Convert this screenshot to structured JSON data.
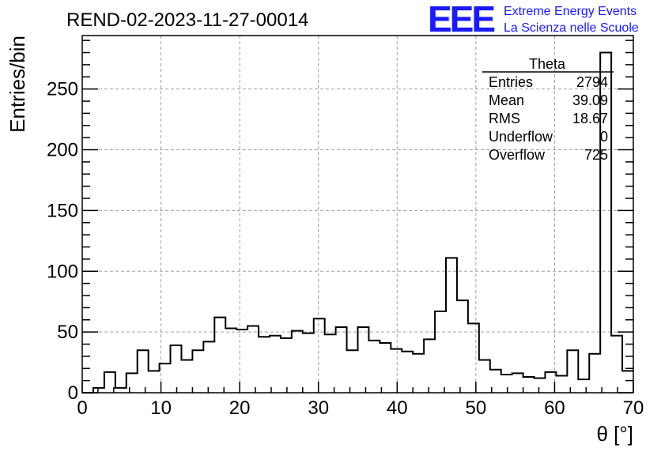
{
  "title": "REND-02-2023-11-27-00014",
  "logo": {
    "mark": "EEE",
    "line1": "Extreme Energy Events",
    "line2": "La Scienza nelle Scuole",
    "color": "#1a1aff"
  },
  "stats_box": {
    "name": "Theta",
    "rows": [
      {
        "label": "Entries",
        "value": "2794"
      },
      {
        "label": "Mean",
        "value": "39.09"
      },
      {
        "label": "RMS",
        "value": "18.67"
      },
      {
        "label": "Underflow",
        "value": "0"
      },
      {
        "label": "Overflow",
        "value": "725"
      }
    ]
  },
  "chart_data": {
    "type": "bar",
    "subtype": "step-histogram",
    "title": "REND-02-2023-11-27-00014",
    "xlabel": "θ [°]",
    "ylabel": "Entries/bin",
    "xlim": [
      0,
      70
    ],
    "ylim": [
      0,
      294
    ],
    "grid": true,
    "bin_width": 1.4,
    "xticks": [
      0,
      10,
      20,
      30,
      40,
      50,
      60,
      70
    ],
    "yticks": [
      0,
      50,
      100,
      150,
      200,
      250
    ],
    "values": [
      0,
      4,
      17,
      4,
      16,
      35,
      18,
      24,
      39,
      27,
      35,
      42,
      62,
      53,
      52,
      55,
      46,
      47,
      45,
      51,
      49,
      61,
      48,
      54,
      35,
      54,
      43,
      41,
      36,
      34,
      32,
      44,
      67,
      111,
      76,
      57,
      27,
      19,
      15,
      16,
      13,
      12,
      17,
      14,
      35,
      11,
      32,
      280,
      47,
      18
    ]
  }
}
